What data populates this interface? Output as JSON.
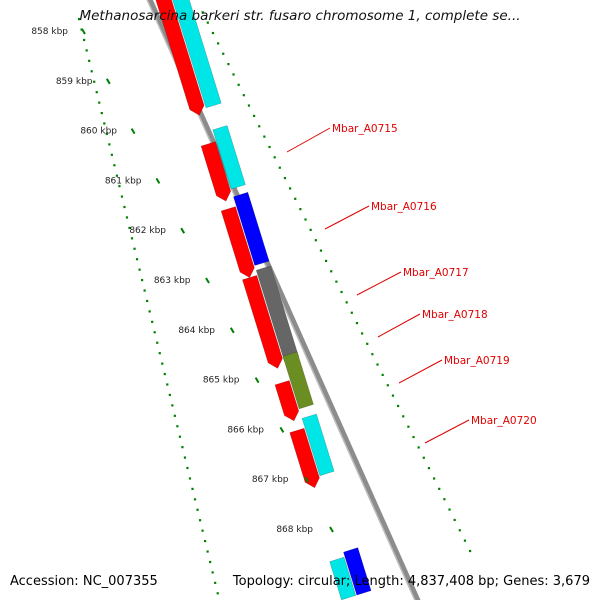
{
  "title": "Methanosarcina barkeri str. fusaro chromosome 1, complete se...",
  "accession": {
    "label": "Accession:",
    "value": "NC_007355"
  },
  "summary": "Topology: circular; Length: 4,837,408 bp; Genes: 3,679",
  "ruler_ticks": [
    "858 kbp",
    "859 kbp",
    "860 kbp",
    "861 kbp",
    "862 kbp",
    "863 kbp",
    "864 kbp",
    "865 kbp",
    "866 kbp",
    "867 kbp",
    "868 kbp"
  ],
  "gene_labels": [
    "Mbar_A0715",
    "Mbar_A0716",
    "Mbar_A0717",
    "Mbar_A0718",
    "Mbar_A0719",
    "Mbar_A0720"
  ],
  "colors": {
    "red": "#ff0000",
    "cyan": "#00e5e5",
    "blue": "#0000ff",
    "gray": "#666666",
    "olive": "#6b8e23",
    "ruler": "#008000",
    "backbone": "#8c8c8c",
    "label": "#e00000"
  }
}
